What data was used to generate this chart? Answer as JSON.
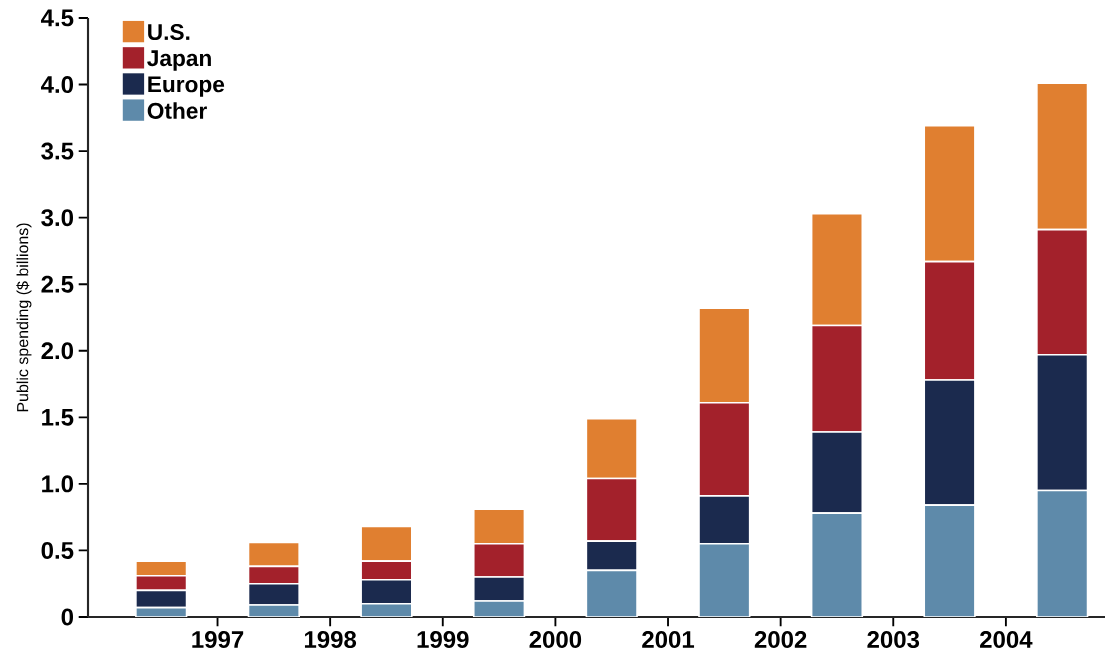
{
  "chart_data": {
    "type": "bar",
    "stacked": true,
    "ylabel": "Public spending ($ billions)",
    "x": [
      1996.5,
      1997.5,
      1998.5,
      1999.5,
      2000.5,
      2001.5,
      2002.5,
      2003.5,
      2004.5
    ],
    "xlim": [
      1995.85,
      2004.88
    ],
    "xticks": [
      1997,
      1998,
      1999,
      2000,
      2001,
      2002,
      2003,
      2004
    ],
    "series": [
      {
        "name": "Other",
        "color": "#5e8aaa",
        "values": [
          0.07,
          0.09,
          0.1,
          0.12,
          0.35,
          0.55,
          0.78,
          0.84,
          0.95
        ]
      },
      {
        "name": "Europe",
        "color": "#1b2a4e",
        "values": [
          0.13,
          0.16,
          0.18,
          0.18,
          0.22,
          0.36,
          0.61,
          0.94,
          1.02
        ]
      },
      {
        "name": "Japan",
        "color": "#a3212b",
        "values": [
          0.11,
          0.13,
          0.14,
          0.25,
          0.47,
          0.7,
          0.8,
          0.89,
          0.94
        ]
      },
      {
        "name": "U.S.",
        "color": "#e07f30",
        "values": [
          0.11,
          0.18,
          0.26,
          0.26,
          0.45,
          0.71,
          0.84,
          1.02,
          1.1
        ]
      }
    ],
    "ylim": [
      0,
      4.5
    ],
    "yticks": [
      0,
      0.5,
      {
        "value": 1,
        "label": "1.0"
      },
      1.5,
      {
        "value": 2,
        "label": "2.0"
      },
      2.5,
      {
        "value": 3,
        "label": "3.0"
      },
      3.5,
      {
        "value": 4,
        "label": "4.0"
      },
      4.5
    ],
    "legend": "top left",
    "grid": false
  }
}
